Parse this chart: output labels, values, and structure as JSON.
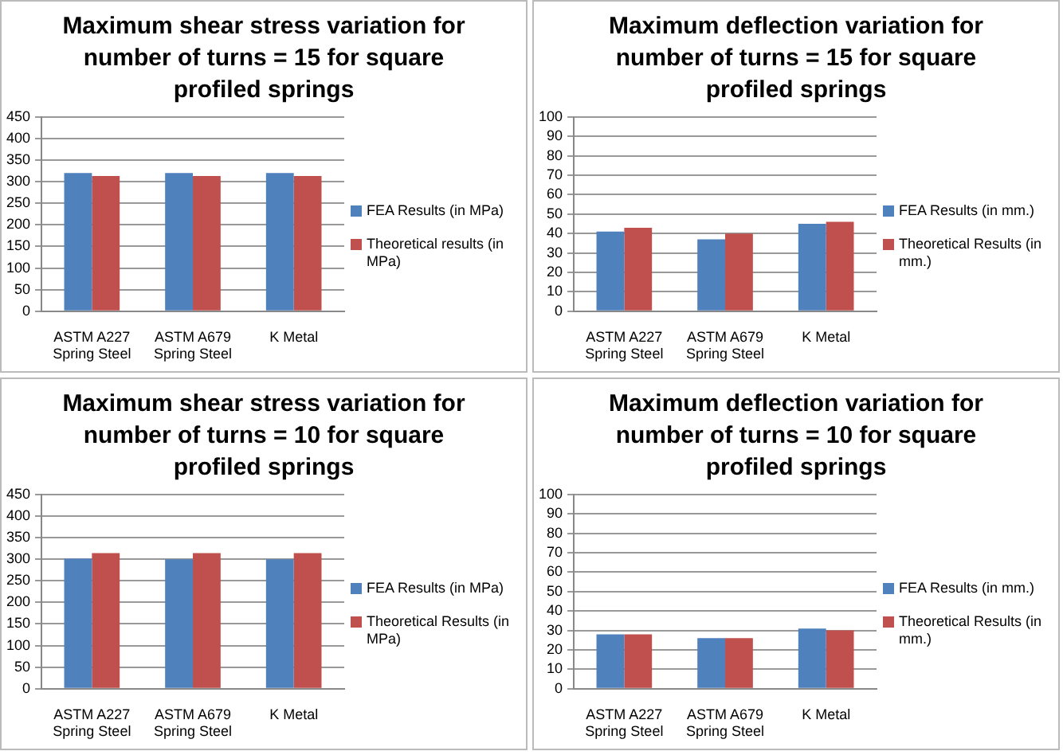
{
  "chart_data": [
    {
      "type": "bar",
      "title": "Maximum shear stress variation for number of turns = 15 for square profiled springs",
      "categories": [
        "ASTM A227 Spring Steel",
        "ASTM A679 Spring Steel",
        "K Metal"
      ],
      "series": [
        {
          "name": "FEA Results (in MPa)",
          "color": "#4f81bd",
          "values": [
            320,
            320,
            320
          ]
        },
        {
          "name": "Theoretical results (in MPa)",
          "color": "#c0504d",
          "values": [
            313,
            313,
            313
          ]
        }
      ],
      "ylim": [
        0,
        450
      ],
      "yticks": [
        0,
        50,
        100,
        150,
        200,
        250,
        300,
        350,
        400,
        450
      ],
      "grid": "y",
      "legend": "right"
    },
    {
      "type": "bar",
      "title": "Maximum deflection variation for number of turns = 15 for square profiled springs",
      "categories": [
        "ASTM A227 Spring Steel",
        "ASTM A679 Spring Steel",
        "K Metal"
      ],
      "series": [
        {
          "name": "FEA Results (in mm.)",
          "color": "#4f81bd",
          "values": [
            41,
            37,
            45
          ]
        },
        {
          "name": "Theoretical Results (in mm.)",
          "color": "#c0504d",
          "values": [
            43,
            40,
            46
          ]
        }
      ],
      "ylim": [
        0,
        100
      ],
      "yticks": [
        0,
        10,
        20,
        30,
        40,
        50,
        60,
        70,
        80,
        90,
        100
      ],
      "grid": "y",
      "legend": "right"
    },
    {
      "type": "bar",
      "title": "Maximum shear stress variation for number of turns = 10 for square profiled springs",
      "categories": [
        "ASTM A227 Spring Steel",
        "ASTM A679 Spring Steel",
        "K Metal"
      ],
      "series": [
        {
          "name": "FEA Results (in MPa)",
          "color": "#4f81bd",
          "values": [
            301,
            300,
            300
          ]
        },
        {
          "name": "Theoretical Results (in MPa)",
          "color": "#c0504d",
          "values": [
            314,
            314,
            314
          ]
        }
      ],
      "ylim": [
        0,
        450
      ],
      "yticks": [
        0,
        50,
        100,
        150,
        200,
        250,
        300,
        350,
        400,
        450
      ],
      "grid": "y",
      "legend": "right"
    },
    {
      "type": "bar",
      "title": "Maximum deflection variation for number of turns = 10 for square profiled springs",
      "categories": [
        "ASTM A227 Spring Steel",
        "ASTM A679 Spring Steel",
        "K Metal"
      ],
      "series": [
        {
          "name": "FEA Results (in mm.)",
          "color": "#4f81bd",
          "values": [
            28,
            26,
            31
          ]
        },
        {
          "name": "Theoretical Results (in mm.)",
          "color": "#c0504d",
          "values": [
            28,
            26,
            30
          ]
        }
      ],
      "ylim": [
        0,
        100
      ],
      "yticks": [
        0,
        10,
        20,
        30,
        40,
        50,
        60,
        70,
        80,
        90,
        100
      ],
      "grid": "y",
      "legend": "right"
    }
  ]
}
